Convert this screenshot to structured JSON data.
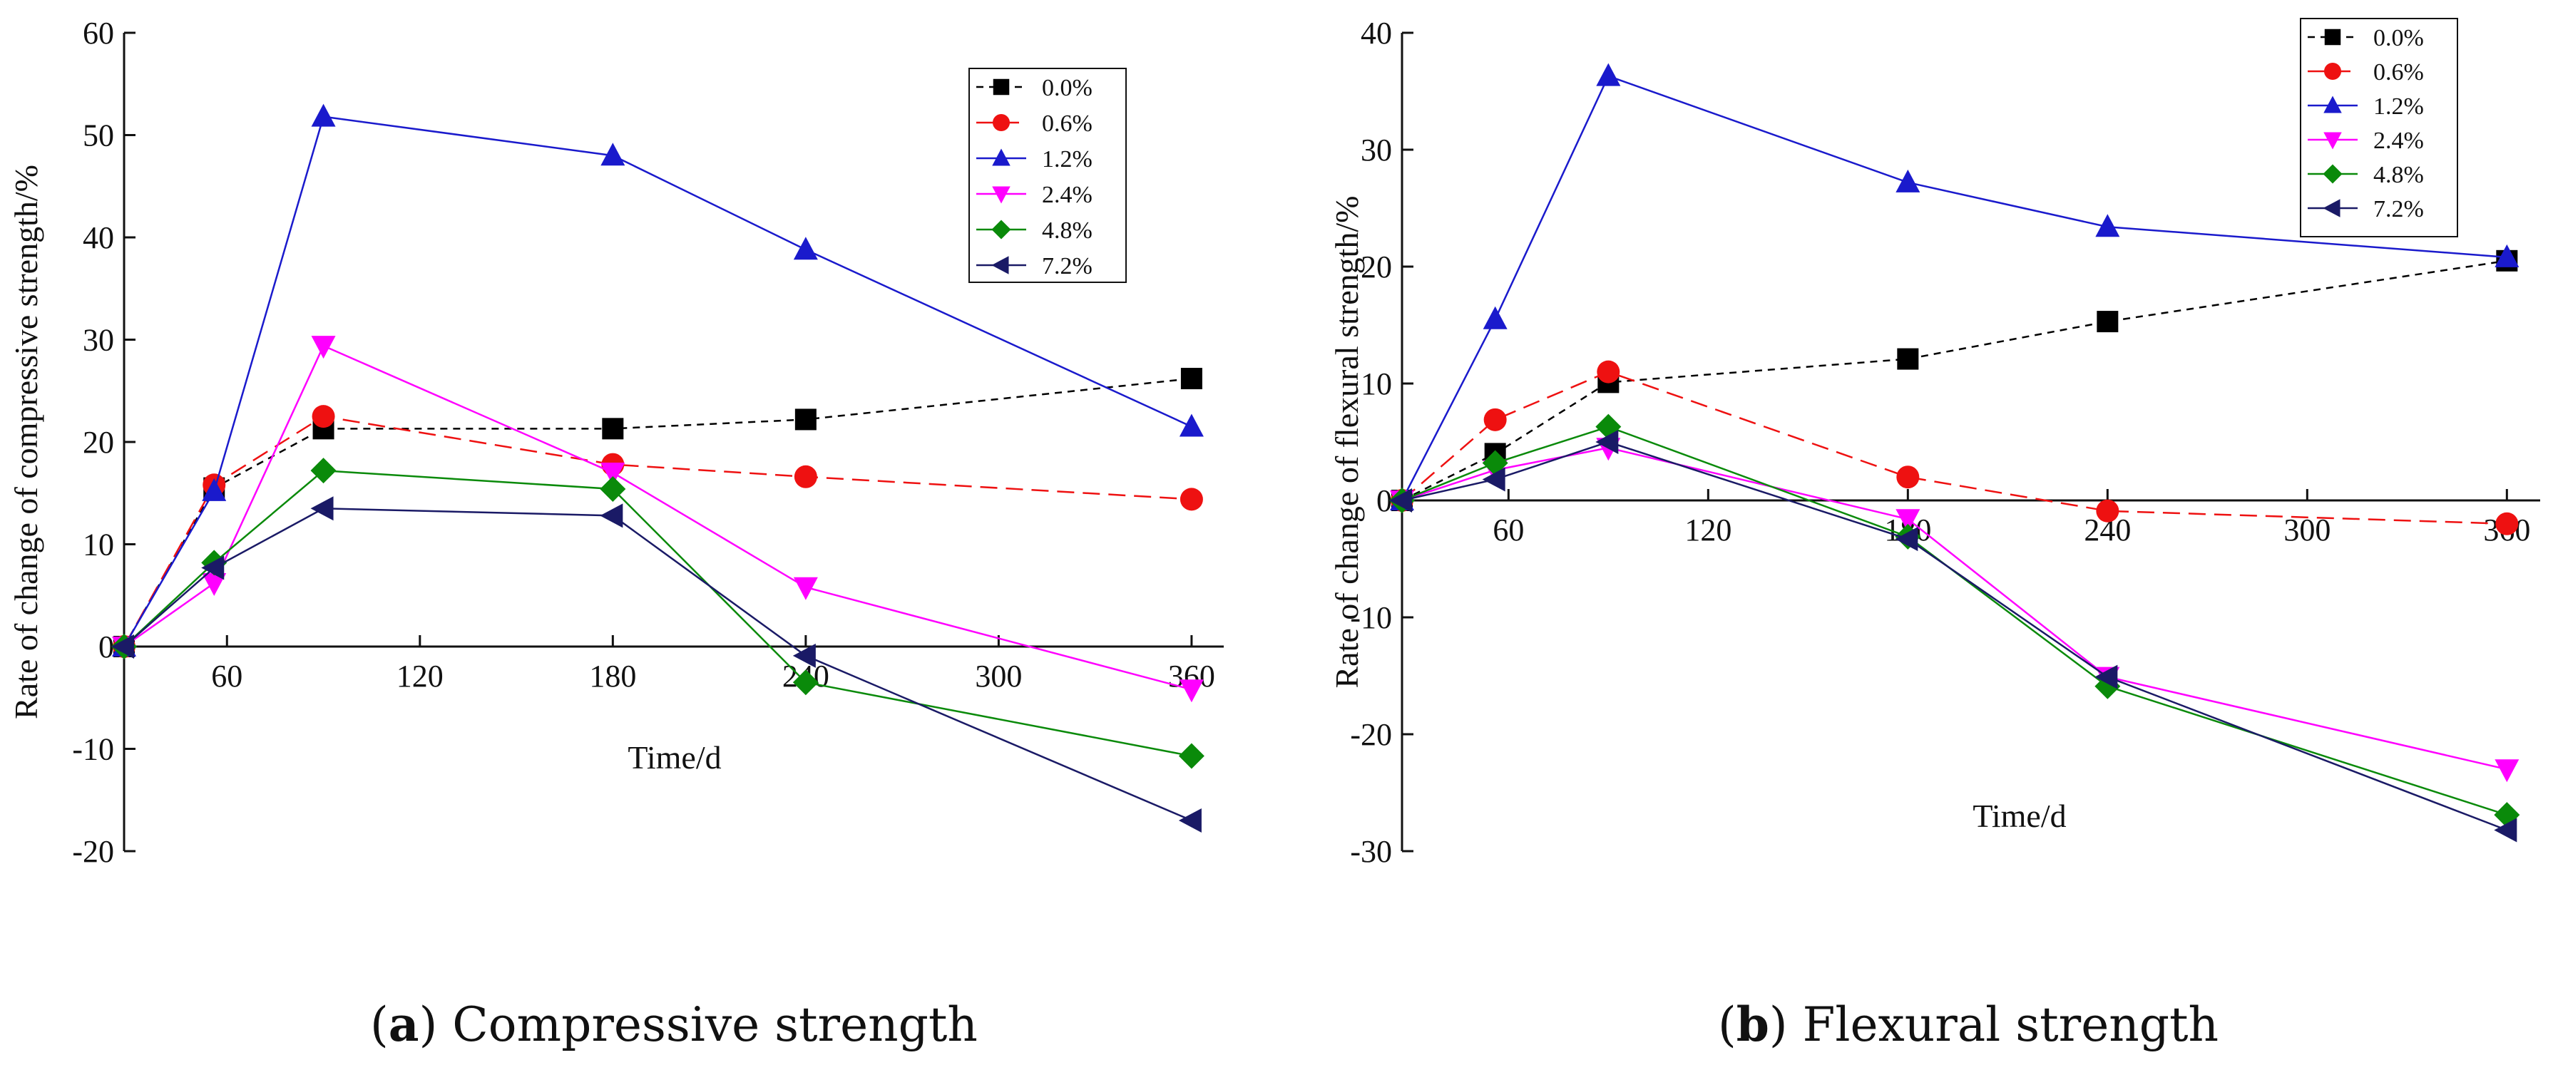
{
  "chart_data": [
    {
      "type": "line",
      "caption_letter": "a",
      "caption_text": "Compressive strength",
      "xlabel": "Time/d",
      "ylabel": "Rate of change of compressive strength/%",
      "x_ticks": [
        60,
        120,
        180,
        240,
        300,
        360
      ],
      "y_ticks": [
        -20,
        -10,
        0,
        10,
        20,
        30,
        40,
        50,
        60
      ],
      "xlim": [
        28,
        370
      ],
      "ylim": [
        -20,
        60
      ],
      "x": [
        28,
        56,
        90,
        180,
        240,
        360
      ],
      "legend_position": "top-right",
      "series": [
        {
          "name": "0.0%",
          "values": [
            0,
            15.5,
            21.3,
            21.3,
            22.2,
            26.2
          ],
          "color": "#000000",
          "marker": "square",
          "dash": "10,8"
        },
        {
          "name": "0.6%",
          "values": [
            0,
            15.8,
            22.5,
            17.8,
            16.6,
            14.4
          ],
          "color": "#ee1111",
          "marker": "circle",
          "dash": "24,12"
        },
        {
          "name": "1.2%",
          "values": [
            0,
            15.2,
            51.8,
            48.0,
            38.8,
            21.5
          ],
          "color": "#1a1acc",
          "marker": "triangle-up",
          "dash": ""
        },
        {
          "name": "2.4%",
          "values": [
            0,
            6.2,
            29.4,
            17.0,
            5.8,
            -4.2
          ],
          "color": "#ff00ff",
          "marker": "triangle-down",
          "dash": ""
        },
        {
          "name": "4.8%",
          "values": [
            0,
            8.2,
            17.2,
            15.4,
            -3.5,
            -10.7
          ],
          "color": "#0a8a0a",
          "marker": "diamond",
          "dash": ""
        },
        {
          "name": "7.2%",
          "values": [
            0,
            7.7,
            13.5,
            12.8,
            -0.9,
            -17.0
          ],
          "color": "#1a1a66",
          "marker": "triangle-left",
          "dash": ""
        }
      ]
    },
    {
      "type": "line",
      "caption_letter": "b",
      "caption_text": "Flexural strength",
      "xlabel": "Time/d",
      "ylabel": "Rate of change of flexural strength/%",
      "x_ticks": [
        60,
        120,
        180,
        240,
        300,
        360
      ],
      "y_ticks": [
        -30,
        -20,
        -10,
        0,
        10,
        20,
        30,
        40
      ],
      "xlim": [
        28,
        370
      ],
      "ylim": [
        -30,
        40
      ],
      "x": [
        28,
        56,
        90,
        180,
        240,
        360
      ],
      "legend_position": "top-right",
      "series": [
        {
          "name": "0.0%",
          "values": [
            0,
            4.0,
            10.1,
            12.1,
            15.3,
            20.5
          ],
          "color": "#000000",
          "marker": "square",
          "dash": "10,8"
        },
        {
          "name": "0.6%",
          "values": [
            0,
            6.9,
            11.0,
            2.0,
            -0.9,
            -2.0
          ],
          "color": "#ee1111",
          "marker": "circle",
          "dash": "24,12"
        },
        {
          "name": "1.2%",
          "values": [
            0,
            15.5,
            36.3,
            27.2,
            23.4,
            20.8
          ],
          "color": "#1a1acc",
          "marker": "triangle-up",
          "dash": ""
        },
        {
          "name": "2.4%",
          "values": [
            0,
            2.6,
            4.5,
            -1.6,
            -15.1,
            -23.0
          ],
          "color": "#ff00ff",
          "marker": "triangle-down",
          "dash": ""
        },
        {
          "name": "4.8%",
          "values": [
            0,
            3.2,
            6.3,
            -3.1,
            -15.9,
            -26.9
          ],
          "color": "#0a8a0a",
          "marker": "diamond",
          "dash": ""
        },
        {
          "name": "7.2%",
          "values": [
            0,
            1.8,
            5.0,
            -3.3,
            -15.1,
            -28.2
          ],
          "color": "#1a1a66",
          "marker": "triangle-left",
          "dash": ""
        }
      ]
    }
  ]
}
